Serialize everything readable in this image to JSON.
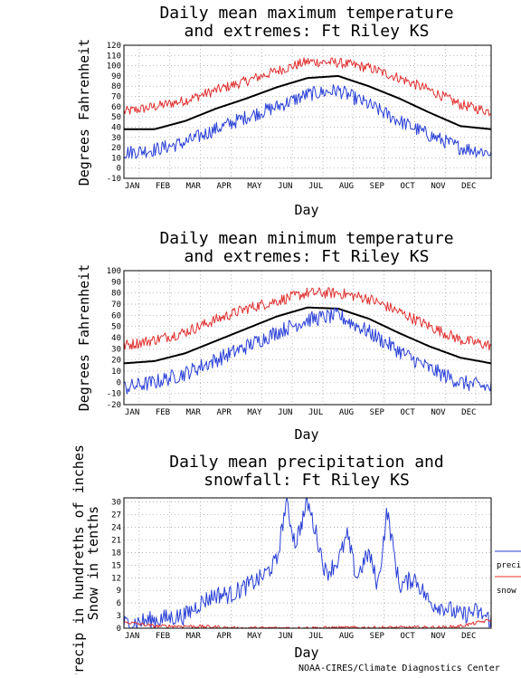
{
  "footer": "NOAA-CIRES/Climate Diagnostics Center",
  "colors": {
    "max_line": "#e03030",
    "min_line": "#2a3fd6",
    "mean_line": "#000000",
    "grid": "#9a9a9a",
    "precip": "#2a3fd6",
    "snow": "#e03030"
  },
  "chart_data": [
    {
      "type": "line",
      "title": [
        "Daily mean maximum temperature",
        "and extremes: Ft Riley KS"
      ],
      "xlabel": "Day",
      "ylabel": "Degrees Fahrenheit",
      "x_ticks": [
        "JAN",
        "FEB",
        "MAR",
        "APR",
        "MAY",
        "JUN",
        "JUL",
        "AUG",
        "SEP",
        "OCT",
        "NOV",
        "DEC"
      ],
      "y_ticks": [
        "-10",
        "0",
        "10",
        "20",
        "30",
        "40",
        "50",
        "60",
        "70",
        "80",
        "90",
        "100",
        "110",
        "120"
      ],
      "ylim": [
        -10,
        120
      ],
      "grid": true,
      "series": [
        {
          "role": "mean",
          "x_months": [
            0,
            1,
            2,
            3,
            4,
            5,
            6,
            7,
            8,
            9,
            10,
            11,
            12
          ],
          "values": [
            38,
            38,
            46,
            58,
            68,
            79,
            88,
            90,
            80,
            68,
            54,
            41,
            38
          ]
        },
        {
          "role": "high_extreme",
          "x_months": [
            0,
            1,
            2,
            3,
            4,
            5,
            6,
            7,
            8,
            9,
            10,
            11,
            12
          ],
          "values": [
            55,
            60,
            66,
            76,
            85,
            95,
            104,
            103,
            98,
            88,
            76,
            62,
            55
          ]
        },
        {
          "role": "low_extreme",
          "x_months": [
            0,
            1,
            2,
            3,
            4,
            5,
            6,
            7,
            8,
            9,
            10,
            11,
            12
          ],
          "values": [
            15,
            18,
            25,
            38,
            50,
            60,
            72,
            76,
            62,
            46,
            32,
            20,
            15
          ]
        }
      ]
    },
    {
      "type": "line",
      "title": [
        "Daily mean minimum temperature",
        "and extremes: Ft Riley KS"
      ],
      "xlabel": "Day",
      "ylabel": "Degrees Fahrenheit",
      "x_ticks": [
        "JAN",
        "FEB",
        "MAR",
        "APR",
        "MAY",
        "JUN",
        "JUL",
        "AUG",
        "SEP",
        "OCT",
        "NOV",
        "DEC"
      ],
      "y_ticks": [
        "-20",
        "-10",
        "0",
        "10",
        "20",
        "30",
        "40",
        "50",
        "60",
        "70",
        "80",
        "90",
        "100"
      ],
      "ylim": [
        -20,
        100
      ],
      "grid": true,
      "series": [
        {
          "role": "mean",
          "x_months": [
            0,
            1,
            2,
            3,
            4,
            5,
            6,
            7,
            8,
            9,
            10,
            11,
            12
          ],
          "values": [
            17,
            19,
            26,
            37,
            48,
            59,
            67,
            66,
            57,
            44,
            32,
            22,
            17
          ]
        },
        {
          "role": "high_extreme",
          "x_months": [
            0,
            1,
            2,
            3,
            4,
            5,
            6,
            7,
            8,
            9,
            10,
            11,
            12
          ],
          "values": [
            33,
            38,
            45,
            56,
            66,
            73,
            80,
            80,
            75,
            63,
            50,
            38,
            33
          ]
        },
        {
          "role": "low_extreme",
          "x_months": [
            0,
            1,
            2,
            3,
            4,
            5,
            6,
            7,
            8,
            9,
            10,
            11,
            12
          ],
          "values": [
            -5,
            0,
            8,
            20,
            32,
            45,
            56,
            60,
            45,
            28,
            12,
            0,
            -5
          ]
        }
      ]
    },
    {
      "type": "line",
      "title": [
        "Daily mean precipitation and",
        "snowfall: Ft Riley KS"
      ],
      "xlabel": "Day",
      "ylabel": [
        "Precip in hundreths of inches",
        "Snow in tenths"
      ],
      "x_ticks": [
        "JAN",
        "FEB",
        "MAR",
        "APR",
        "MAY",
        "JUN",
        "JUL",
        "AUG",
        "SEP",
        "OCT",
        "NOV",
        "DEC"
      ],
      "y_ticks": [
        "0",
        "3",
        "6",
        "9",
        "12",
        "15",
        "18",
        "21",
        "24",
        "27",
        "30"
      ],
      "ylim": [
        0,
        31
      ],
      "grid": true,
      "legend": {
        "placement": "right",
        "items": [
          "precip",
          "snow"
        ]
      },
      "series": [
        {
          "name": "precip",
          "x_months": [
            0,
            0.5,
            1,
            1.5,
            2,
            2.5,
            3,
            3.5,
            4,
            4.5,
            5,
            5.3,
            5.6,
            6,
            6.3,
            6.6,
            7,
            7.3,
            7.6,
            8,
            8.3,
            8.6,
            9,
            9.5,
            10,
            10.5,
            11,
            11.5,
            12
          ],
          "values": [
            1,
            1.5,
            2,
            2.5,
            3,
            6,
            8,
            8,
            10,
            12,
            16,
            30,
            20,
            30,
            22,
            13,
            16,
            22,
            12,
            18,
            10,
            28,
            10,
            12,
            6,
            5,
            3,
            4,
            2
          ]
        },
        {
          "name": "snow",
          "x_months": [
            0,
            1,
            2,
            3,
            3.5,
            4,
            10.5,
            11,
            12
          ],
          "values": [
            1.5,
            0.5,
            0.5,
            0.3,
            0,
            0,
            0.2,
            0.5,
            2
          ]
        }
      ]
    }
  ]
}
